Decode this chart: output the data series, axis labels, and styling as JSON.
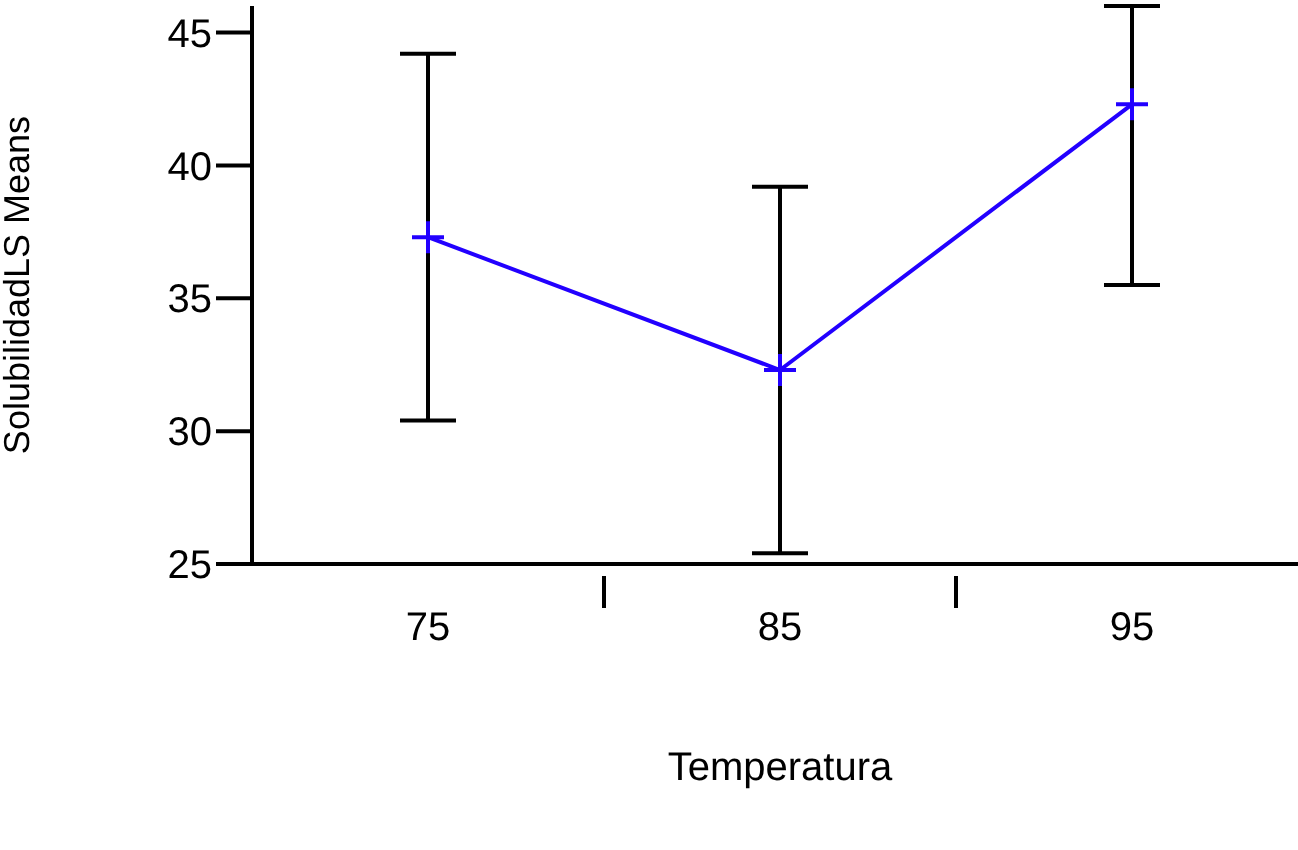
{
  "chart_data": {
    "type": "line",
    "xlabel": "Temperatura",
    "ylabel": "SolubilidadLS Means",
    "categories": [
      "75",
      "85",
      "95"
    ],
    "series": [
      {
        "color": "#2200ff",
        "values": [
          37.3,
          32.3,
          42.3
        ],
        "errors": [
          6.9,
          6.9,
          [
            35.5,
            46
          ]
        ]
      }
    ],
    "ylim": [
      25,
      46
    ],
    "yticks": [
      25,
      30,
      35,
      40,
      45
    ],
    "marker": "cross",
    "grid": false,
    "legend": false
  }
}
